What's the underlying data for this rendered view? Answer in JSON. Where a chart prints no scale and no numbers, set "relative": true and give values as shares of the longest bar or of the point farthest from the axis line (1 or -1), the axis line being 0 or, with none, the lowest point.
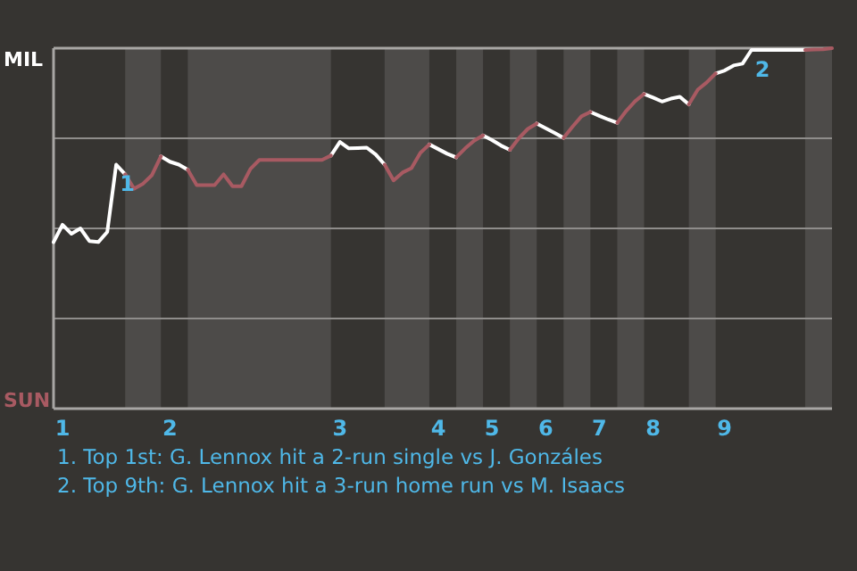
{
  "chart_data": {
    "type": "line",
    "relative": true,
    "marker": "none",
    "line_style": "solid",
    "categories": [
      null,
      "1",
      null,
      null,
      null,
      null,
      null,
      null,
      null,
      null,
      null,
      null,
      null,
      "2",
      null,
      null,
      null,
      null,
      null,
      null,
      null,
      null,
      null,
      null,
      null,
      null,
      null,
      null,
      null,
      null,
      null,
      null,
      "3",
      null,
      null,
      null,
      null,
      null,
      null,
      null,
      null,
      null,
      null,
      "4",
      null,
      null,
      null,
      null,
      null,
      "5",
      null,
      null,
      null,
      null,
      null,
      "6",
      null,
      null,
      null,
      null,
      null,
      "7",
      null,
      null,
      null,
      null,
      null,
      "8",
      null,
      null,
      null,
      null,
      null,
      null,
      null,
      "9",
      null,
      null,
      null,
      null,
      null,
      null,
      null,
      null,
      null,
      null,
      null,
      null
    ],
    "series": [
      {
        "color": "#ffffff",
        "values": [
          0.462,
          0.51,
          0.485,
          0.5,
          0.465,
          0.462,
          0.49,
          0.677,
          0.65,
          null,
          null,
          null,
          0.7,
          0.685,
          0.677,
          0.663,
          null,
          null,
          null,
          null,
          null,
          null,
          null,
          null,
          null,
          null,
          null,
          null,
          null,
          null,
          null,
          0.702,
          0.74,
          0.722,
          0.723,
          0.724,
          0.705,
          0.677,
          null,
          null,
          null,
          null,
          0.733,
          0.72,
          0.707,
          0.697,
          null,
          null,
          0.758,
          0.745,
          0.73,
          0.718,
          null,
          null,
          0.791,
          0.778,
          0.765,
          0.751,
          null,
          null,
          0.823,
          0.812,
          0.802,
          0.793,
          null,
          null,
          0.873,
          0.863,
          0.852,
          0.86,
          0.865,
          0.844,
          null,
          null,
          0.93,
          0.938,
          0.952,
          0.957,
          0.995,
          0.995,
          0.995,
          0.995,
          0.995,
          0.995,
          0.995,
          null,
          null,
          null
        ]
      },
      {
        "color": "#a85a62",
        "values": [
          null,
          null,
          null,
          null,
          null,
          null,
          null,
          null,
          0.65,
          0.61,
          0.624,
          0.648,
          0.7,
          null,
          null,
          0.663,
          0.62,
          0.62,
          0.62,
          0.65,
          0.617,
          0.617,
          0.665,
          0.69,
          0.69,
          0.69,
          0.69,
          0.69,
          0.69,
          0.69,
          0.69,
          0.702,
          null,
          null,
          null,
          null,
          null,
          0.677,
          0.633,
          0.655,
          0.667,
          0.71,
          0.733,
          null,
          null,
          0.697,
          0.722,
          0.743,
          0.758,
          null,
          null,
          0.718,
          0.75,
          0.776,
          0.791,
          null,
          null,
          0.751,
          0.782,
          0.811,
          0.823,
          null,
          null,
          0.793,
          0.826,
          0.853,
          0.873,
          null,
          null,
          null,
          null,
          0.844,
          0.885,
          0.905,
          0.93,
          null,
          null,
          null,
          null,
          null,
          null,
          null,
          null,
          null,
          0.995,
          0.996,
          0.997,
          1
        ]
      }
    ],
    "ref_lines": [
      {
        "axis": "y",
        "value": 0.25,
        "color": "#8f8d8b"
      },
      {
        "axis": "y",
        "value": 0.5,
        "color": "#8f8d8b"
      },
      {
        "axis": "y",
        "value": 0.75,
        "color": "#8f8d8b"
      }
    ],
    "annotations": [
      "MIL",
      "SUN",
      {
        "text": "1",
        "y": 0.677
      },
      {
        "text": "2",
        "y": 0.995
      },
      "1. Top 1st: G. Lennox hit a 2-run single vs J. Gonzáles",
      "2. Top 9th: G. Lennox hit a 3-run home run vs M. Isaacs"
    ]
  }
}
